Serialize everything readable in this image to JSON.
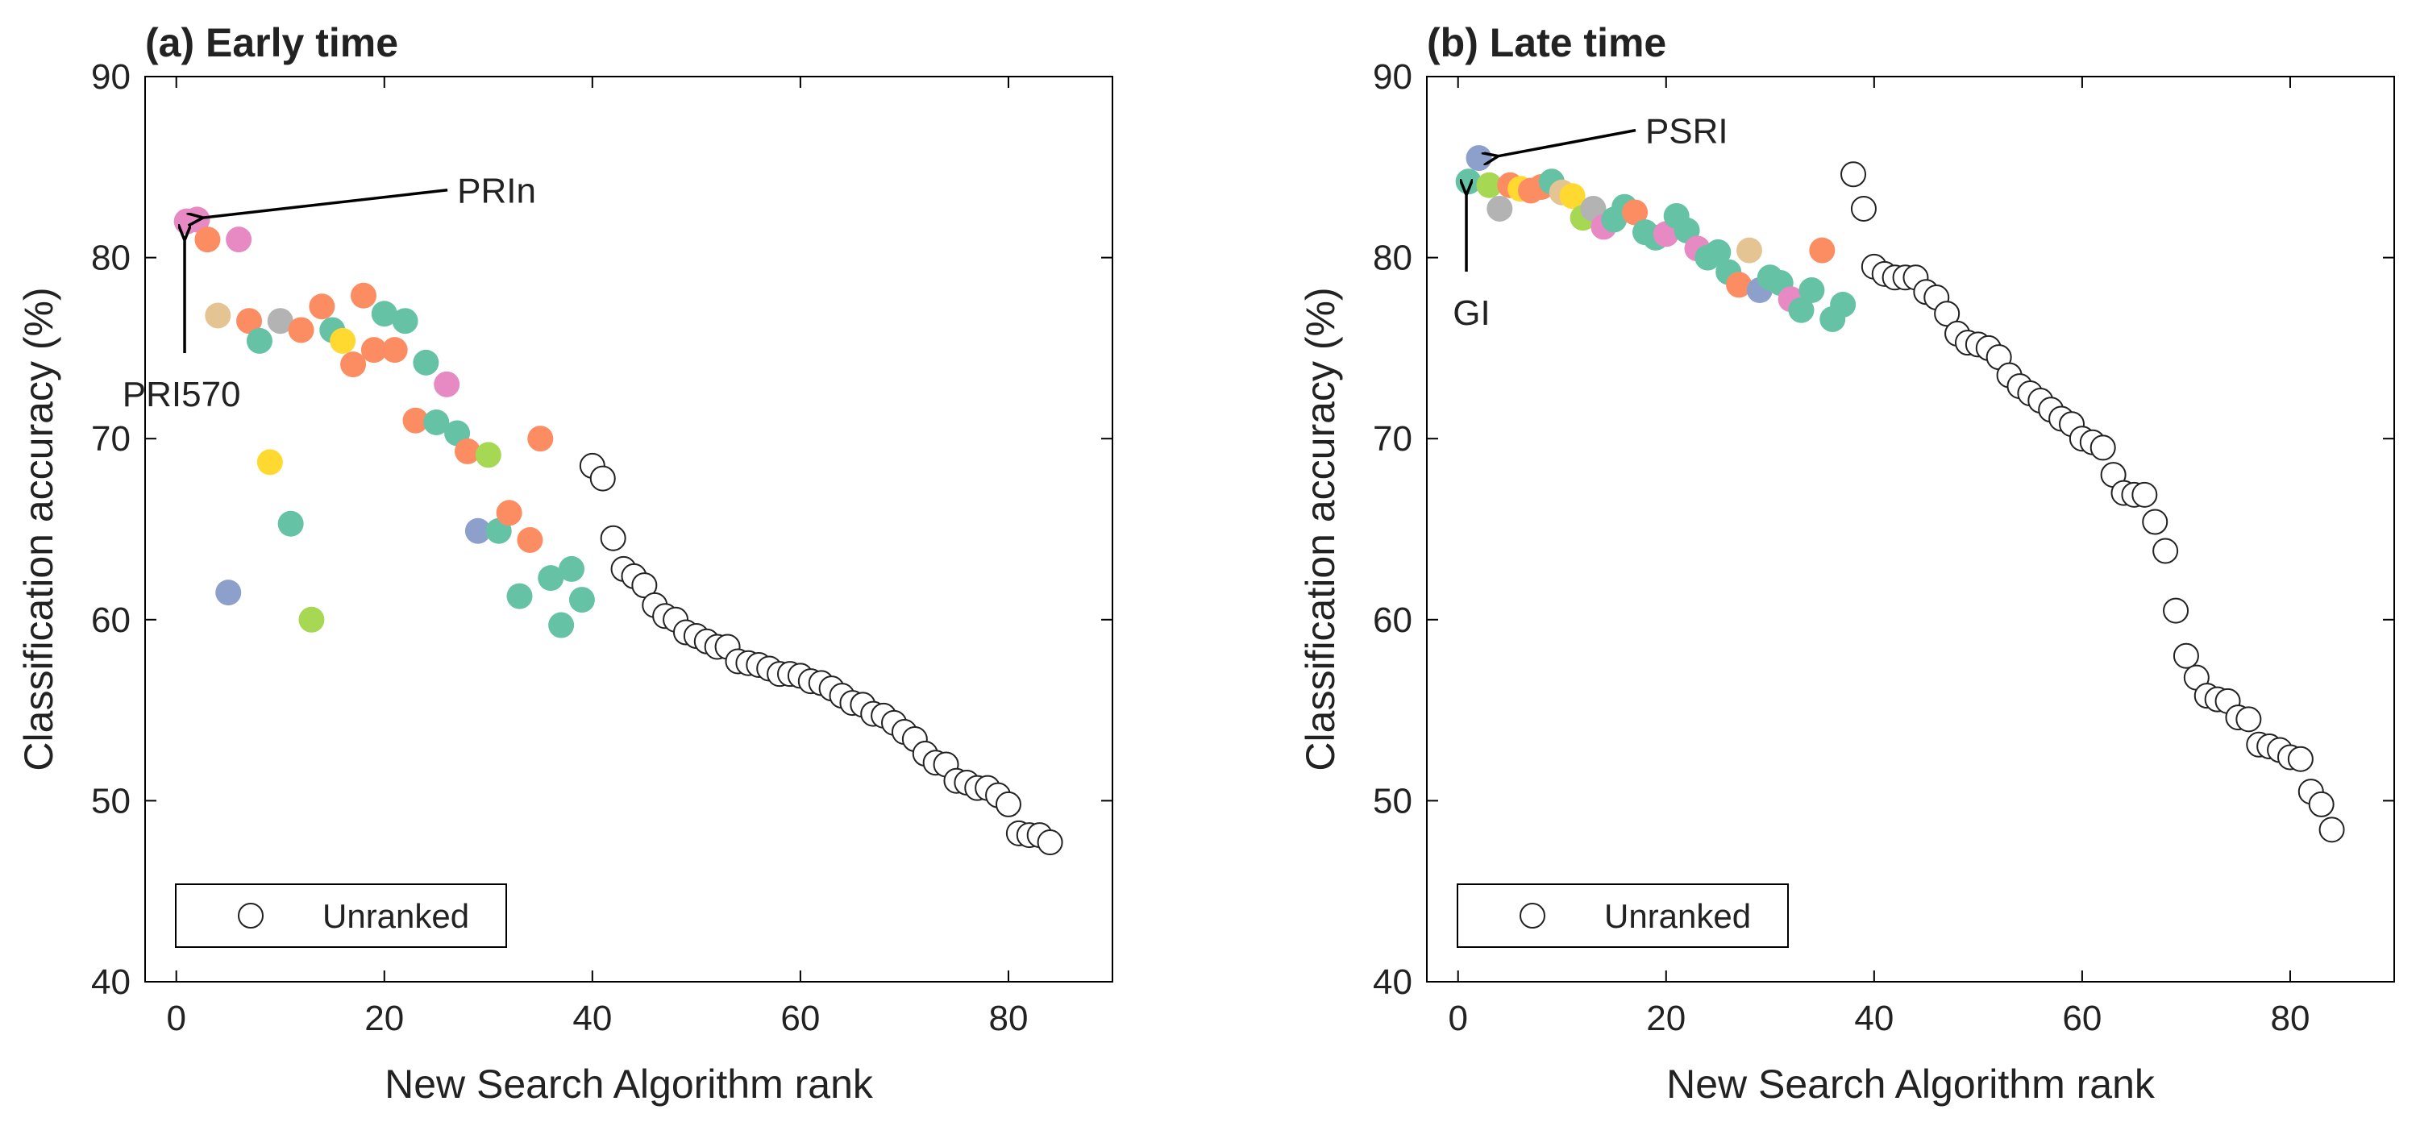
{
  "chart_data": [
    {
      "type": "scatter",
      "title": "(a) Early time",
      "xlabel": "New Search Algorithm rank",
      "ylabel": "Classification accuracy (%)",
      "xlim": [
        -3,
        90
      ],
      "ylim": [
        40,
        90
      ],
      "xticks": [
        0,
        20,
        40,
        60,
        80
      ],
      "yticks": [
        40,
        50,
        60,
        70,
        80,
        90
      ],
      "grid": false,
      "legend": {
        "placement": "bottom-left",
        "entries": [
          {
            "label": "Unranked",
            "marker": "open-circle"
          }
        ]
      },
      "annotations": [
        {
          "label": "PRIn",
          "point": [
            2.5,
            82.2
          ],
          "label_pos": [
            27,
            83.2
          ]
        },
        {
          "label": "PRI570",
          "point": [
            0.8,
            81.0
          ],
          "label_pos": [
            0.5,
            72.5
          ]
        }
      ],
      "ranked_points": [
        {
          "x": 1,
          "y": 82,
          "color": "#e78ac3"
        },
        {
          "x": 2,
          "y": 82.1,
          "color": "#e78ac3"
        },
        {
          "x": 3,
          "y": 81,
          "color": "#fc8d62"
        },
        {
          "x": 4,
          "y": 76.8,
          "color": "#e5c494"
        },
        {
          "x": 5,
          "y": 61.5,
          "color": "#8da0cb"
        },
        {
          "x": 6,
          "y": 81,
          "color": "#e78ac3"
        },
        {
          "x": 7,
          "y": 76.5,
          "color": "#fc8d62"
        },
        {
          "x": 8,
          "y": 75.4,
          "color": "#66c2a5"
        },
        {
          "x": 9,
          "y": 68.7,
          "color": "#ffd92f"
        },
        {
          "x": 10,
          "y": 76.5,
          "color": "#b3b3b3"
        },
        {
          "x": 11,
          "y": 65.3,
          "color": "#66c2a5"
        },
        {
          "x": 12,
          "y": 76,
          "color": "#fc8d62"
        },
        {
          "x": 13,
          "y": 60,
          "color": "#a6d854"
        },
        {
          "x": 14,
          "y": 77.3,
          "color": "#fc8d62"
        },
        {
          "x": 15,
          "y": 76,
          "color": "#66c2a5"
        },
        {
          "x": 16,
          "y": 75.4,
          "color": "#ffd92f"
        },
        {
          "x": 17,
          "y": 74.1,
          "color": "#fc8d62"
        },
        {
          "x": 18,
          "y": 77.9,
          "color": "#fc8d62"
        },
        {
          "x": 19,
          "y": 74.9,
          "color": "#fc8d62"
        },
        {
          "x": 20,
          "y": 76.9,
          "color": "#66c2a5"
        },
        {
          "x": 21,
          "y": 74.9,
          "color": "#fc8d62"
        },
        {
          "x": 22,
          "y": 76.5,
          "color": "#66c2a5"
        },
        {
          "x": 23,
          "y": 71,
          "color": "#fc8d62"
        },
        {
          "x": 24,
          "y": 74.2,
          "color": "#66c2a5"
        },
        {
          "x": 25,
          "y": 70.9,
          "color": "#66c2a5"
        },
        {
          "x": 26,
          "y": 73,
          "color": "#e78ac3"
        },
        {
          "x": 27,
          "y": 70.3,
          "color": "#66c2a5"
        },
        {
          "x": 28,
          "y": 69.3,
          "color": "#fc8d62"
        },
        {
          "x": 29,
          "y": 64.9,
          "color": "#8da0cb"
        },
        {
          "x": 30,
          "y": 69.1,
          "color": "#a6d854"
        },
        {
          "x": 31,
          "y": 64.9,
          "color": "#66c2a5"
        },
        {
          "x": 32,
          "y": 65.9,
          "color": "#fc8d62"
        },
        {
          "x": 33,
          "y": 61.3,
          "color": "#66c2a5"
        },
        {
          "x": 34,
          "y": 64.4,
          "color": "#fc8d62"
        },
        {
          "x": 35,
          "y": 70,
          "color": "#fc8d62"
        },
        {
          "x": 36,
          "y": 62.3,
          "color": "#66c2a5"
        },
        {
          "x": 37,
          "y": 59.7,
          "color": "#66c2a5"
        },
        {
          "x": 38,
          "y": 62.8,
          "color": "#66c2a5"
        },
        {
          "x": 39,
          "y": 61.1,
          "color": "#66c2a5"
        }
      ],
      "unranked_points": [
        {
          "x": 40,
          "y": 68.5
        },
        {
          "x": 41,
          "y": 67.8
        },
        {
          "x": 42,
          "y": 64.5
        },
        {
          "x": 43,
          "y": 62.8
        },
        {
          "x": 44,
          "y": 62.4
        },
        {
          "x": 45,
          "y": 61.9
        },
        {
          "x": 46,
          "y": 60.8
        },
        {
          "x": 47,
          "y": 60.2
        },
        {
          "x": 48,
          "y": 60
        },
        {
          "x": 49,
          "y": 59.3
        },
        {
          "x": 50,
          "y": 59.1
        },
        {
          "x": 51,
          "y": 58.8
        },
        {
          "x": 52,
          "y": 58.5
        },
        {
          "x": 53,
          "y": 58.5
        },
        {
          "x": 54,
          "y": 57.7
        },
        {
          "x": 55,
          "y": 57.6
        },
        {
          "x": 56,
          "y": 57.5
        },
        {
          "x": 57,
          "y": 57.3
        },
        {
          "x": 58,
          "y": 57
        },
        {
          "x": 59,
          "y": 57
        },
        {
          "x": 60,
          "y": 56.9
        },
        {
          "x": 61,
          "y": 56.6
        },
        {
          "x": 62,
          "y": 56.5
        },
        {
          "x": 63,
          "y": 56.2
        },
        {
          "x": 64,
          "y": 55.8
        },
        {
          "x": 65,
          "y": 55.4
        },
        {
          "x": 66,
          "y": 55.3
        },
        {
          "x": 67,
          "y": 54.8
        },
        {
          "x": 68,
          "y": 54.7
        },
        {
          "x": 69,
          "y": 54.3
        },
        {
          "x": 70,
          "y": 53.8
        },
        {
          "x": 71,
          "y": 53.4
        },
        {
          "x": 72,
          "y": 52.6
        },
        {
          "x": 73,
          "y": 52.1
        },
        {
          "x": 74,
          "y": 52
        },
        {
          "x": 75,
          "y": 51.1
        },
        {
          "x": 76,
          "y": 51
        },
        {
          "x": 77,
          "y": 50.7
        },
        {
          "x": 78,
          "y": 50.7
        },
        {
          "x": 79,
          "y": 50.3
        },
        {
          "x": 80,
          "y": 49.8
        },
        {
          "x": 81,
          "y": 48.2
        },
        {
          "x": 82,
          "y": 48.1
        },
        {
          "x": 83,
          "y": 48.1
        },
        {
          "x": 84,
          "y": 47.7
        }
      ]
    },
    {
      "type": "scatter",
      "title": "(b) Late time",
      "xlabel": "New Search Algorithm rank",
      "ylabel": "Classification accuracy (%)",
      "xlim": [
        -3,
        90
      ],
      "ylim": [
        40,
        90
      ],
      "xticks": [
        0,
        20,
        40,
        60,
        80
      ],
      "yticks": [
        40,
        50,
        60,
        70,
        80,
        90
      ],
      "grid": false,
      "legend": {
        "placement": "bottom-left",
        "entries": [
          {
            "label": "Unranked",
            "marker": "open-circle"
          }
        ]
      },
      "annotations": [
        {
          "label": "PSRI",
          "point": [
            3.8,
            85.6
          ],
          "label_pos": [
            18,
            86.5
          ]
        },
        {
          "label": "GI",
          "point": [
            0.8,
            83.5
          ],
          "label_pos": [
            1.3,
            77.0
          ]
        }
      ],
      "ranked_points": [
        {
          "x": 1,
          "y": 84.2,
          "color": "#66c2a5"
        },
        {
          "x": 2,
          "y": 85.5,
          "color": "#8da0cb"
        },
        {
          "x": 3,
          "y": 84,
          "color": "#a6d854"
        },
        {
          "x": 4,
          "y": 82.7,
          "color": "#b3b3b3"
        },
        {
          "x": 5,
          "y": 84,
          "color": "#fc8d62"
        },
        {
          "x": 6,
          "y": 83.8,
          "color": "#ffd92f"
        },
        {
          "x": 7,
          "y": 83.7,
          "color": "#fc8d62"
        },
        {
          "x": 8,
          "y": 83.9,
          "color": "#fc8d62"
        },
        {
          "x": 9,
          "y": 84.2,
          "color": "#66c2a5"
        },
        {
          "x": 10,
          "y": 83.6,
          "color": "#e5c494"
        },
        {
          "x": 11,
          "y": 83.4,
          "color": "#ffd92f"
        },
        {
          "x": 12,
          "y": 82.2,
          "color": "#a6d854"
        },
        {
          "x": 13,
          "y": 82.7,
          "color": "#b3b3b3"
        },
        {
          "x": 14,
          "y": 81.7,
          "color": "#e78ac3"
        },
        {
          "x": 15,
          "y": 82.1,
          "color": "#66c2a5"
        },
        {
          "x": 16,
          "y": 82.8,
          "color": "#66c2a5"
        },
        {
          "x": 17,
          "y": 82.5,
          "color": "#fc8d62"
        },
        {
          "x": 18,
          "y": 81.4,
          "color": "#66c2a5"
        },
        {
          "x": 19,
          "y": 81.1,
          "color": "#66c2a5"
        },
        {
          "x": 20,
          "y": 81.3,
          "color": "#e78ac3"
        },
        {
          "x": 21,
          "y": 82.3,
          "color": "#66c2a5"
        },
        {
          "x": 22,
          "y": 81.5,
          "color": "#66c2a5"
        },
        {
          "x": 23,
          "y": 80.5,
          "color": "#e78ac3"
        },
        {
          "x": 24,
          "y": 80,
          "color": "#66c2a5"
        },
        {
          "x": 25,
          "y": 80.3,
          "color": "#66c2a5"
        },
        {
          "x": 26,
          "y": 79.2,
          "color": "#66c2a5"
        },
        {
          "x": 27,
          "y": 78.5,
          "color": "#fc8d62"
        },
        {
          "x": 28,
          "y": 80.4,
          "color": "#e5c494"
        },
        {
          "x": 29,
          "y": 78.2,
          "color": "#8da0cb"
        },
        {
          "x": 30,
          "y": 78.9,
          "color": "#66c2a5"
        },
        {
          "x": 31,
          "y": 78.6,
          "color": "#66c2a5"
        },
        {
          "x": 32,
          "y": 77.7,
          "color": "#e78ac3"
        },
        {
          "x": 33,
          "y": 77.1,
          "color": "#66c2a5"
        },
        {
          "x": 34,
          "y": 78.2,
          "color": "#66c2a5"
        },
        {
          "x": 35,
          "y": 80.4,
          "color": "#fc8d62"
        },
        {
          "x": 36,
          "y": 76.6,
          "color": "#66c2a5"
        },
        {
          "x": 37,
          "y": 77.4,
          "color": "#66c2a5"
        }
      ],
      "unranked_points": [
        {
          "x": 38,
          "y": 84.6
        },
        {
          "x": 39,
          "y": 82.7
        },
        {
          "x": 40,
          "y": 79.5
        },
        {
          "x": 41,
          "y": 79.1
        },
        {
          "x": 42,
          "y": 78.9
        },
        {
          "x": 43,
          "y": 78.9
        },
        {
          "x": 44,
          "y": 78.9
        },
        {
          "x": 45,
          "y": 78.1
        },
        {
          "x": 46,
          "y": 77.8
        },
        {
          "x": 47,
          "y": 76.9
        },
        {
          "x": 48,
          "y": 75.8
        },
        {
          "x": 49,
          "y": 75.3
        },
        {
          "x": 50,
          "y": 75.2
        },
        {
          "x": 51,
          "y": 75
        },
        {
          "x": 52,
          "y": 74.5
        },
        {
          "x": 53,
          "y": 73.5
        },
        {
          "x": 54,
          "y": 72.9
        },
        {
          "x": 55,
          "y": 72.5
        },
        {
          "x": 56,
          "y": 72.1
        },
        {
          "x": 57,
          "y": 71.6
        },
        {
          "x": 58,
          "y": 71.1
        },
        {
          "x": 59,
          "y": 70.8
        },
        {
          "x": 60,
          "y": 70
        },
        {
          "x": 61,
          "y": 69.8
        },
        {
          "x": 62,
          "y": 69.5
        },
        {
          "x": 63,
          "y": 68
        },
        {
          "x": 64,
          "y": 67
        },
        {
          "x": 65,
          "y": 66.9
        },
        {
          "x": 66,
          "y": 66.9
        },
        {
          "x": 67,
          "y": 65.4
        },
        {
          "x": 68,
          "y": 63.8
        },
        {
          "x": 69,
          "y": 60.5
        },
        {
          "x": 70,
          "y": 58
        },
        {
          "x": 71,
          "y": 56.8
        },
        {
          "x": 72,
          "y": 55.8
        },
        {
          "x": 73,
          "y": 55.6
        },
        {
          "x": 74,
          "y": 55.5
        },
        {
          "x": 75,
          "y": 54.6
        },
        {
          "x": 76,
          "y": 54.5
        },
        {
          "x": 77,
          "y": 53.1
        },
        {
          "x": 78,
          "y": 53
        },
        {
          "x": 79,
          "y": 52.8
        },
        {
          "x": 80,
          "y": 52.4
        },
        {
          "x": 81,
          "y": 52.3
        },
        {
          "x": 82,
          "y": 50.5
        },
        {
          "x": 83,
          "y": 49.8
        },
        {
          "x": 84,
          "y": 48.4
        }
      ]
    }
  ]
}
